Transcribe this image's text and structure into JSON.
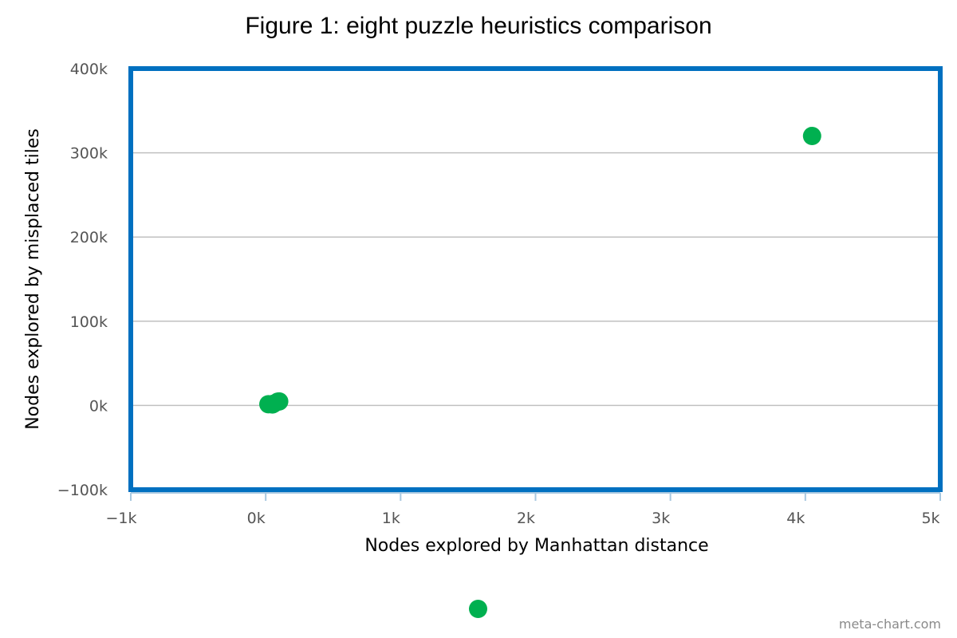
{
  "chart_data": {
    "type": "scatter",
    "title": "Figure 1: eight puzzle heuristics comparison",
    "xlabel": "Nodes explored by Manhattan distance",
    "ylabel": "Nodes explored by misplaced tiles",
    "xlim": [
      -1000,
      5000
    ],
    "ylim": [
      -100000,
      400000
    ],
    "x_ticks": [
      "−1k",
      "0k",
      "1k",
      "2k",
      "3k",
      "4k",
      "5k"
    ],
    "y_ticks": [
      "−100k",
      "0k",
      "100k",
      "200k",
      "300k",
      "400k"
    ],
    "grid": "horizontal",
    "legend": "bottom-center",
    "series": [
      {
        "color": "#00b050",
        "points": [
          {
            "x": 20,
            "y": 1500
          },
          {
            "x": 50,
            "y": 1200
          },
          {
            "x": 60,
            "y": 2200
          },
          {
            "x": 90,
            "y": 4500
          },
          {
            "x": 100,
            "y": 4800
          },
          {
            "x": 4050,
            "y": 320000
          }
        ]
      }
    ]
  },
  "frame_color": "#0070c0",
  "grid_color": "#c0c0c0",
  "watermark": "meta-chart.com"
}
